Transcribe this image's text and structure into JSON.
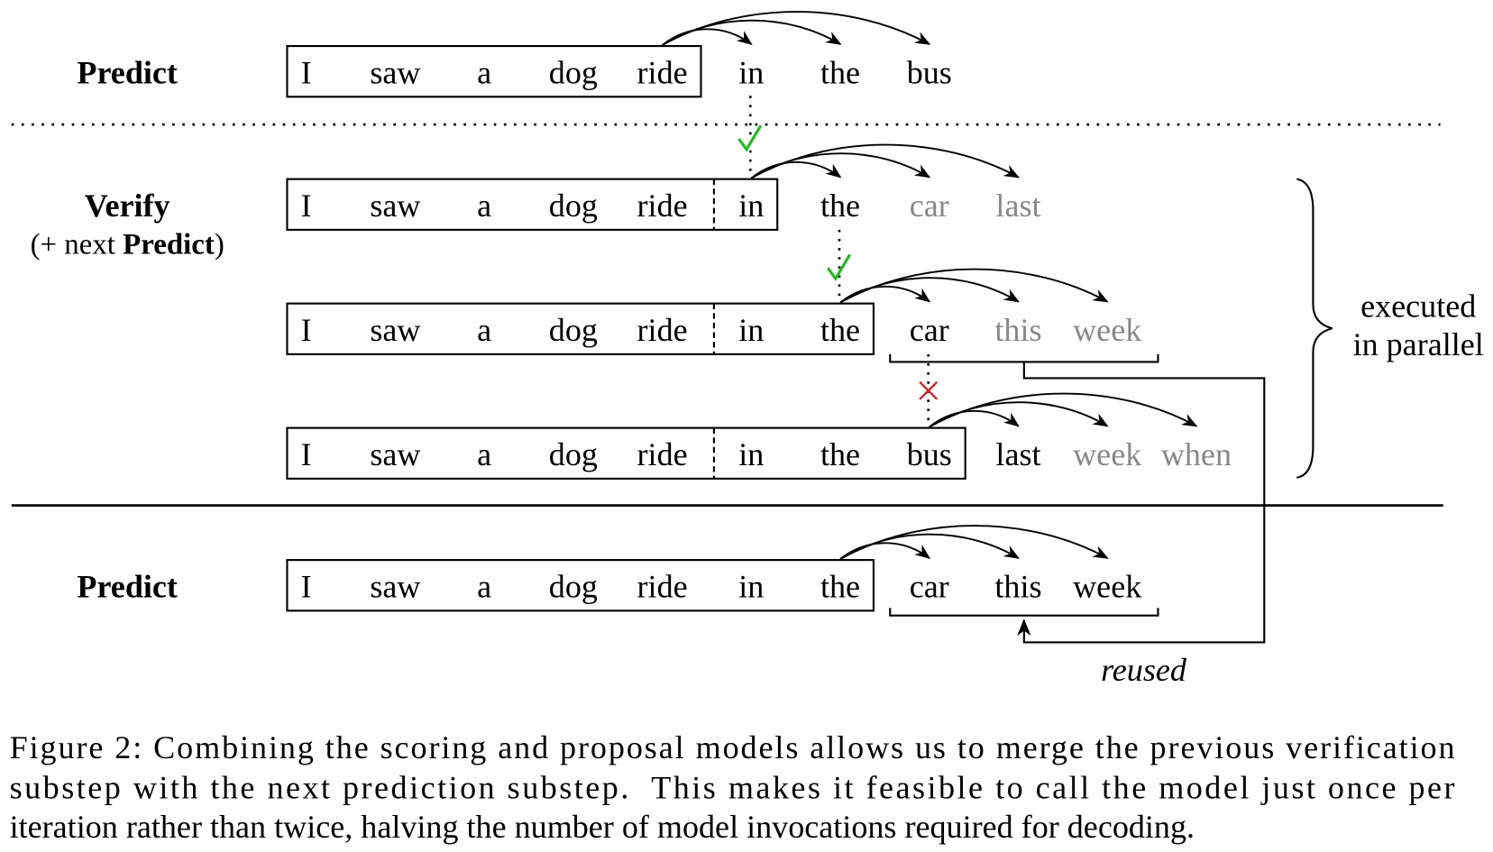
{
  "rows": [
    {
      "label": "Predict",
      "boxed": [
        [
          "I",
          "saw",
          "a",
          "dog",
          "ride"
        ]
      ],
      "after": [
        "in",
        "the",
        "bus"
      ]
    },
    {
      "label": "Verify",
      "sublabel_prefix": "(+ next ",
      "sublabel_bold": "Predict",
      "sublabel_suffix": ")",
      "boxed": [
        [
          "I",
          "saw",
          "a",
          "dog",
          "ride"
        ],
        [
          "in"
        ]
      ],
      "after": [
        "the"
      ],
      "faded": [
        "car",
        "last"
      ]
    },
    {
      "boxed": [
        [
          "I",
          "saw",
          "a",
          "dog",
          "ride"
        ],
        [
          "in",
          "the"
        ]
      ],
      "after": [
        "car"
      ],
      "faded": [
        "this",
        "week"
      ]
    },
    {
      "boxed": [
        [
          "I",
          "saw",
          "a",
          "dog",
          "ride"
        ],
        [
          "in",
          "the",
          "bus"
        ]
      ],
      "after": [
        "last"
      ],
      "faded": [
        "week",
        "when"
      ]
    },
    {
      "label": "Predict",
      "boxed": [
        [
          "I",
          "saw",
          "a",
          "dog",
          "ride",
          "in",
          "the"
        ]
      ],
      "after": [
        "car",
        "this",
        "week"
      ]
    }
  ],
  "parallel_note": [
    "executed",
    "in parallel"
  ],
  "reused_note": "reused",
  "caption": [
    "Figure 2: Combining the scoring and proposal models allows us to merge the previous verification",
    "substep with the next prediction substep.  This makes it feasible to call the model just once per",
    "iteration rather than twice, halving the number of model invocations required for decoding."
  ]
}
